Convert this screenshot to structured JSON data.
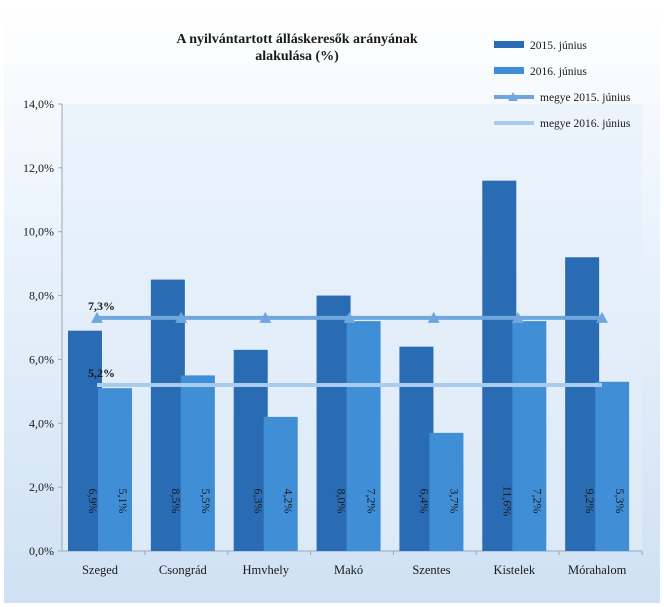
{
  "chart_data": {
    "type": "bar",
    "title_lines": [
      "A nyilvántartott álláskeresők arányának",
      "alakulása (%)"
    ],
    "categories": [
      "Szeged",
      "Csongrád",
      "Hmvhely",
      "Makó",
      "Szentes",
      "Kistelek",
      "Mórahalom"
    ],
    "series": [
      {
        "name": "2015. június",
        "values": [
          6.9,
          8.5,
          6.3,
          8.0,
          6.4,
          11.6,
          9.2
        ],
        "labels": [
          "6,9%",
          "8,5%",
          "6,3%",
          "8,0%",
          "6,4%",
          "11,6%",
          "9,2%"
        ],
        "color": "#2a6cb3"
      },
      {
        "name": "2016. június",
        "values": [
          5.1,
          5.5,
          4.2,
          7.2,
          3.7,
          7.2,
          5.3
        ],
        "labels": [
          "5,1%",
          "5,5%",
          "4,2%",
          "7,2%",
          "3,7%",
          "7,2%",
          "5,3%"
        ],
        "color": "#3f8ed6"
      }
    ],
    "lines": [
      {
        "name": "megye 2015. június",
        "value": 7.3,
        "label": "7,3%",
        "color": "#6fa6de",
        "marker": "triangle"
      },
      {
        "name": "megye 2016. június",
        "value": 5.2,
        "label": "5,2%",
        "color": "#a9cbee",
        "marker": "none"
      }
    ],
    "ylim": [
      0,
      14
    ],
    "yticks": [
      0,
      2,
      4,
      6,
      8,
      10,
      12,
      14
    ],
    "ytick_labels": [
      "0,0%",
      "2,0%",
      "4,0%",
      "6,0%",
      "8,0%",
      "10,0%",
      "12,0%",
      "14,0%"
    ],
    "grid": false,
    "legend_position": "top-right",
    "background_colors": {
      "outer": "#d6e6f6",
      "plot": "#e4eff9"
    }
  }
}
